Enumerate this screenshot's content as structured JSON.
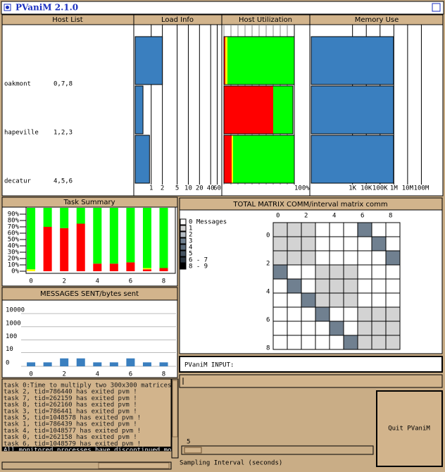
{
  "window": {
    "title": "PVaniM 2.1.0"
  },
  "hosts": {
    "headers": [
      "Host List",
      "Load Info",
      "Host Utilization",
      "Memory Use"
    ],
    "list": [
      {
        "name": "oakmont",
        "tasks": "0,7,8"
      },
      {
        "name": "hapeville",
        "tasks": "1,2,3"
      },
      {
        "name": "decatur",
        "tasks": "4,5,6"
      }
    ],
    "load": {
      "type": "bar",
      "log_scale": true,
      "color": "#3a7fbf",
      "values": [
        2,
        0.6,
        0.9
      ],
      "xlim": [
        0.37,
        70
      ],
      "xticks": [
        1,
        2,
        5,
        10,
        20,
        40,
        60
      ]
    },
    "utilization": {
      "type": "stacked-bar",
      "series": [
        {
          "color": "#ff0000",
          "values": [
            2,
            70,
            11
          ]
        },
        {
          "color": "#ffff00",
          "values": [
            3,
            0,
            2
          ]
        },
        {
          "color": "#00ff00",
          "values": [
            95,
            28,
            87
          ]
        }
      ],
      "xlim": [
        0,
        100
      ],
      "xticks": [
        {
          "value": 100,
          "label": "100%"
        }
      ]
    },
    "memory": {
      "type": "bar",
      "log_scale": true,
      "color": "#3a7fbf",
      "values": [
        950000,
        950000,
        950000
      ],
      "xlim": [
        1,
        1000000000
      ],
      "xticks": [
        {
          "value": 1000,
          "label": "1K"
        },
        {
          "value": 10000,
          "label": "10K"
        },
        {
          "value": 100000,
          "label": "100K"
        },
        {
          "value": 1000000,
          "label": "1M"
        },
        {
          "value": 10000000,
          "label": "10M"
        },
        {
          "value": 100000000,
          "label": "100M"
        }
      ]
    }
  },
  "task_summary": {
    "type": "stacked-bar",
    "title": "Task Summary",
    "x": [
      0,
      1,
      2,
      3,
      4,
      5,
      6,
      7,
      8
    ],
    "xlim": [
      -0.3,
      8.7
    ],
    "xticks": [
      0,
      2,
      4,
      6,
      8
    ],
    "series": [
      {
        "color": "#ff0000",
        "values": [
          0,
          70,
          68,
          75,
          12,
          12,
          14,
          3,
          5
        ]
      },
      {
        "color": "#ffff00",
        "values": [
          3,
          0,
          0,
          0,
          0,
          0,
          0,
          2,
          0
        ]
      },
      {
        "color": "#00ff00",
        "values": [
          97,
          30,
          32,
          25,
          88,
          88,
          86,
          95,
          95
        ]
      }
    ],
    "ylim": [
      0,
      100
    ],
    "yticks": [
      {
        "value": 0,
        "label": "0%"
      },
      {
        "value": 10,
        "label": "10%"
      },
      {
        "value": 20,
        "label": "20%"
      },
      {
        "value": 30,
        "label": "30%"
      },
      {
        "value": 40,
        "label": "40%"
      },
      {
        "value": 50,
        "label": "50%"
      },
      {
        "value": 60,
        "label": "60%"
      },
      {
        "value": 70,
        "label": "70%"
      },
      {
        "value": 80,
        "label": "80%"
      },
      {
        "value": 90,
        "label": "90%"
      }
    ]
  },
  "messages": {
    "type": "bar",
    "title": "MESSAGES SENT/bytes sent",
    "log_scale": true,
    "grid": true,
    "x": [
      0,
      1,
      2,
      3,
      4,
      5,
      6,
      7,
      8
    ],
    "xlim": [
      -0.3,
      8.7
    ],
    "xticks": [
      0,
      2,
      4,
      6,
      8
    ],
    "values": [
      1,
      1,
      3,
      3,
      1,
      1,
      3,
      1,
      1
    ],
    "color": "#3a7fbf",
    "ylim": [
      0,
      27000
    ],
    "yticks": [
      0,
      10,
      100,
      1000,
      10000
    ]
  },
  "matrix": {
    "type": "heatmap",
    "title": "TOTAL MATRIX COMM/interval matrix comm",
    "legend": [
      {
        "label": "0 Messages",
        "color": "#ffffff"
      },
      {
        "label": "1",
        "color": "#d3d3d3"
      },
      {
        "label": "2",
        "color": "#b4bcc4"
      },
      {
        "label": "3",
        "color": "#708090"
      },
      {
        "label": "4",
        "color": "#5a6a7a"
      },
      {
        "label": "5",
        "color": "#445260"
      },
      {
        "label": "6 - 7",
        "color": "#2a3540"
      },
      {
        "label": "8 - 9",
        "color": "#000000"
      }
    ],
    "values": [
      [
        1,
        1,
        1,
        0,
        0,
        0,
        3,
        0,
        0
      ],
      [
        1,
        1,
        1,
        0,
        0,
        0,
        0,
        3,
        0
      ],
      [
        1,
        1,
        1,
        0,
        0,
        0,
        0,
        0,
        3
      ],
      [
        3,
        0,
        0,
        1,
        1,
        1,
        0,
        0,
        0
      ],
      [
        0,
        3,
        0,
        1,
        1,
        1,
        0,
        0,
        0
      ],
      [
        0,
        0,
        3,
        1,
        1,
        1,
        0,
        0,
        0
      ],
      [
        0,
        0,
        0,
        3,
        0,
        0,
        1,
        1,
        1
      ],
      [
        0,
        0,
        0,
        0,
        3,
        0,
        1,
        1,
        1
      ],
      [
        0,
        0,
        0,
        0,
        0,
        3,
        1,
        1,
        1
      ]
    ],
    "xticks": [
      0,
      2,
      4,
      6,
      8
    ],
    "yticks": [
      0,
      2,
      4,
      6,
      8
    ]
  },
  "input": {
    "label": "PVaniM INPUT:"
  },
  "log": {
    "lines": [
      "task 0:Time to multiply two 300x300 matrices us",
      "task 2, tid=786440 has exited pvm !",
      "task 7, tid=262159 has exited pvm !",
      "task 8, tid=262160 has exited pvm !",
      "task 3, tid=786441 has exited pvm !",
      "task 5, tid=1048578 has exited pvm !",
      "task 1, tid=786439 has exited pvm !",
      "task 4, tid=1048577 has exited pvm !",
      "task 0, tid=262158 has exited pvm !",
      "task 6, tid=1048579 has exited pvm !",
      "All monitored processes have discontinued monit"
    ]
  },
  "quit_button": "Quit PVaniM",
  "slider": {
    "label": "Sampling Interval (seconds)",
    "value": 5
  }
}
